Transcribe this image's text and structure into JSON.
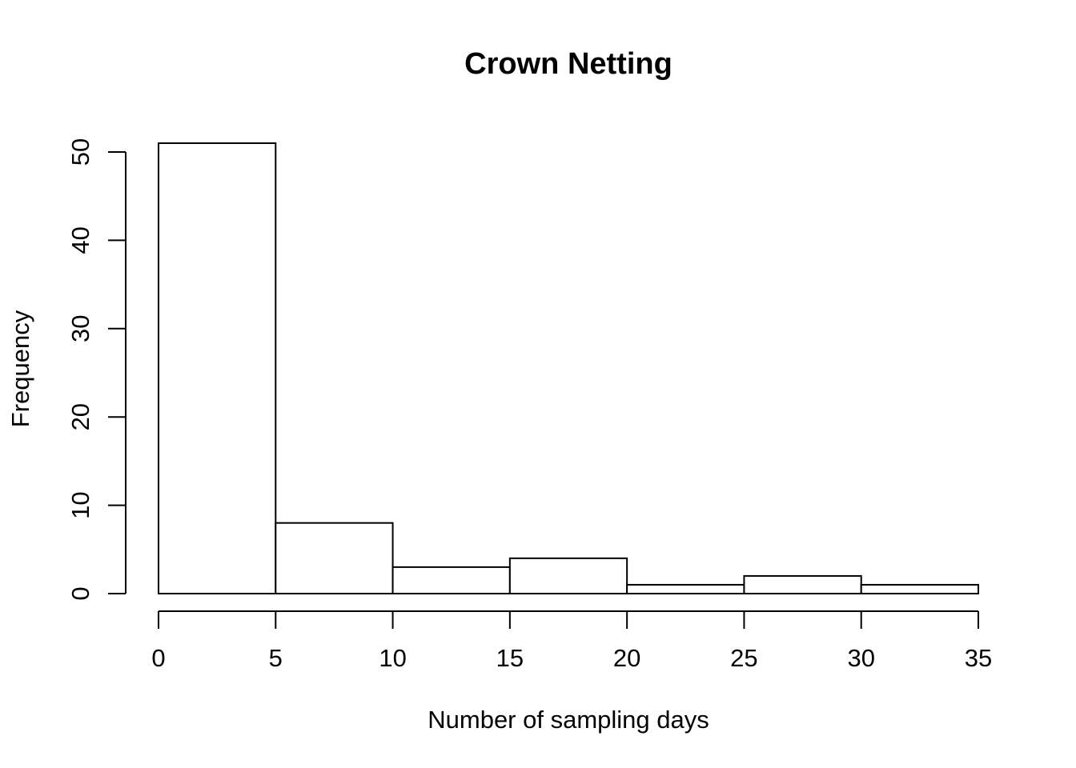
{
  "chart_data": {
    "type": "bar",
    "subtype": "histogram",
    "title": "Crown Netting",
    "xlabel": "Number of sampling days",
    "ylabel": "Frequency",
    "bins": [
      {
        "from": 0,
        "to": 5,
        "count": 51
      },
      {
        "from": 5,
        "to": 10,
        "count": 8
      },
      {
        "from": 10,
        "to": 15,
        "count": 3
      },
      {
        "from": 15,
        "to": 20,
        "count": 4
      },
      {
        "from": 20,
        "to": 25,
        "count": 1
      },
      {
        "from": 25,
        "to": 30,
        "count": 2
      },
      {
        "from": 30,
        "to": 35,
        "count": 1
      }
    ],
    "xlim": [
      0,
      35
    ],
    "ylim": [
      0,
      50
    ],
    "xticks": [
      "0",
      "5",
      "10",
      "15",
      "20",
      "25",
      "30",
      "35"
    ],
    "yticks": [
      "0",
      "10",
      "20",
      "30",
      "40",
      "50"
    ],
    "grid": false,
    "legend": "none",
    "colors": {
      "bar_fill": "#ffffff",
      "bar_stroke": "#000000"
    }
  }
}
